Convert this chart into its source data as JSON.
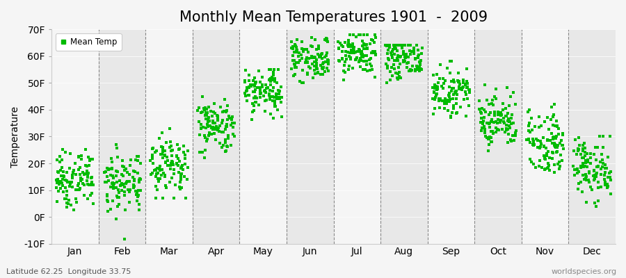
{
  "title": "Monthly Mean Temperatures 1901  -  2009",
  "ylabel": "Temperature",
  "months": [
    "Jan",
    "Feb",
    "Mar",
    "Apr",
    "May",
    "Jun",
    "Jul",
    "Aug",
    "Sep",
    "Oct",
    "Nov",
    "Dec"
  ],
  "ylim": [
    -10,
    70
  ],
  "yticks": [
    -10,
    0,
    10,
    20,
    30,
    40,
    50,
    60,
    70
  ],
  "ytick_labels": [
    "-10F",
    "0F",
    "10F",
    "20F",
    "30F",
    "40F",
    "50F",
    "60F",
    "70F"
  ],
  "dot_color": "#00bb00",
  "bg_color": "#f5f5f5",
  "alt_bg_color": "#e8e8e8",
  "white_bg_color": "#f5f5f5",
  "legend_label": "Mean Temp",
  "attribution": "worldspecies.org",
  "lat_lon": "Latitude 62.25  Longitude 33.75",
  "title_fontsize": 15,
  "label_fontsize": 10,
  "monthly_means": [
    14,
    13,
    20,
    34,
    47,
    59,
    61,
    59,
    47,
    36,
    28,
    18
  ],
  "monthly_stds": [
    5,
    6,
    6,
    5,
    5,
    4,
    4,
    4,
    4,
    5,
    6,
    6
  ],
  "monthly_mins": [
    -5,
    -9,
    7,
    22,
    34,
    50,
    51,
    50,
    37,
    24,
    14,
    4
  ],
  "monthly_maxs": [
    26,
    27,
    33,
    45,
    55,
    67,
    68,
    64,
    58,
    51,
    43,
    30
  ],
  "n_years": 109,
  "seed": 7
}
